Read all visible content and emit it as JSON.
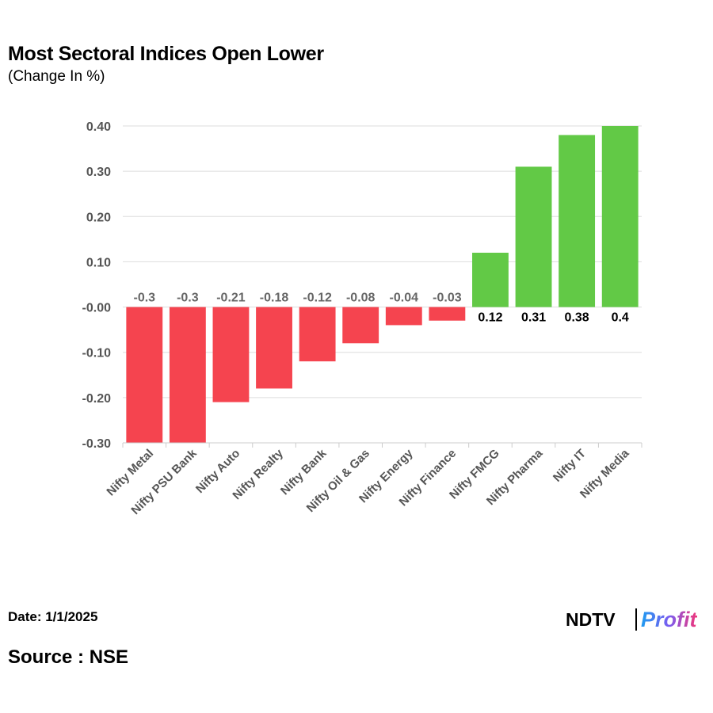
{
  "header": {
    "title": "Most Sectoral Indices Open Lower",
    "subtitle": "(Change In %)"
  },
  "footer": {
    "date": "Date: 1/1/2025",
    "source": "Source : NSE",
    "logo_left": "NDTV",
    "logo_right": "Profit"
  },
  "colors": {
    "negative": "#f5444f",
    "positive": "#62c946",
    "grid": "#dddddd"
  },
  "chart_data": {
    "type": "bar",
    "categories": [
      "Nifty Metal",
      "Nifty PSU Bank",
      "Nifty Auto",
      "Nifty Realty",
      "Nifty Bank",
      "Nifty Oil & Gas",
      "Nifty Energy",
      "Nifty Finance",
      "Nifty FMCG",
      "Nifty Pharma",
      "Nifty IT",
      "Nifty Media"
    ],
    "values": [
      -0.3,
      -0.3,
      -0.21,
      -0.18,
      -0.12,
      -0.08,
      -0.04,
      -0.03,
      0.12,
      0.31,
      0.38,
      0.4
    ],
    "data_labels": [
      "-0.3",
      "-0.3",
      "-0.21",
      "-0.18",
      "-0.12",
      "-0.08",
      "-0.04",
      "-0.03",
      "0.12",
      "0.31",
      "0.38",
      "0.4"
    ],
    "yticks": [
      0.4,
      0.3,
      0.2,
      0.1,
      0,
      -0.1,
      -0.2,
      -0.3
    ],
    "ytick_labels": [
      "0.40",
      "0.30",
      "0.20",
      "0.10",
      "-0.00",
      "-0.10",
      "-0.20",
      "-0.30"
    ],
    "ylim": [
      -0.3,
      0.4
    ],
    "title": "Most Sectoral Indices Open Lower",
    "subtitle": "(Change In %)",
    "xlabel": "",
    "ylabel": "",
    "grid": true,
    "legend": false
  }
}
